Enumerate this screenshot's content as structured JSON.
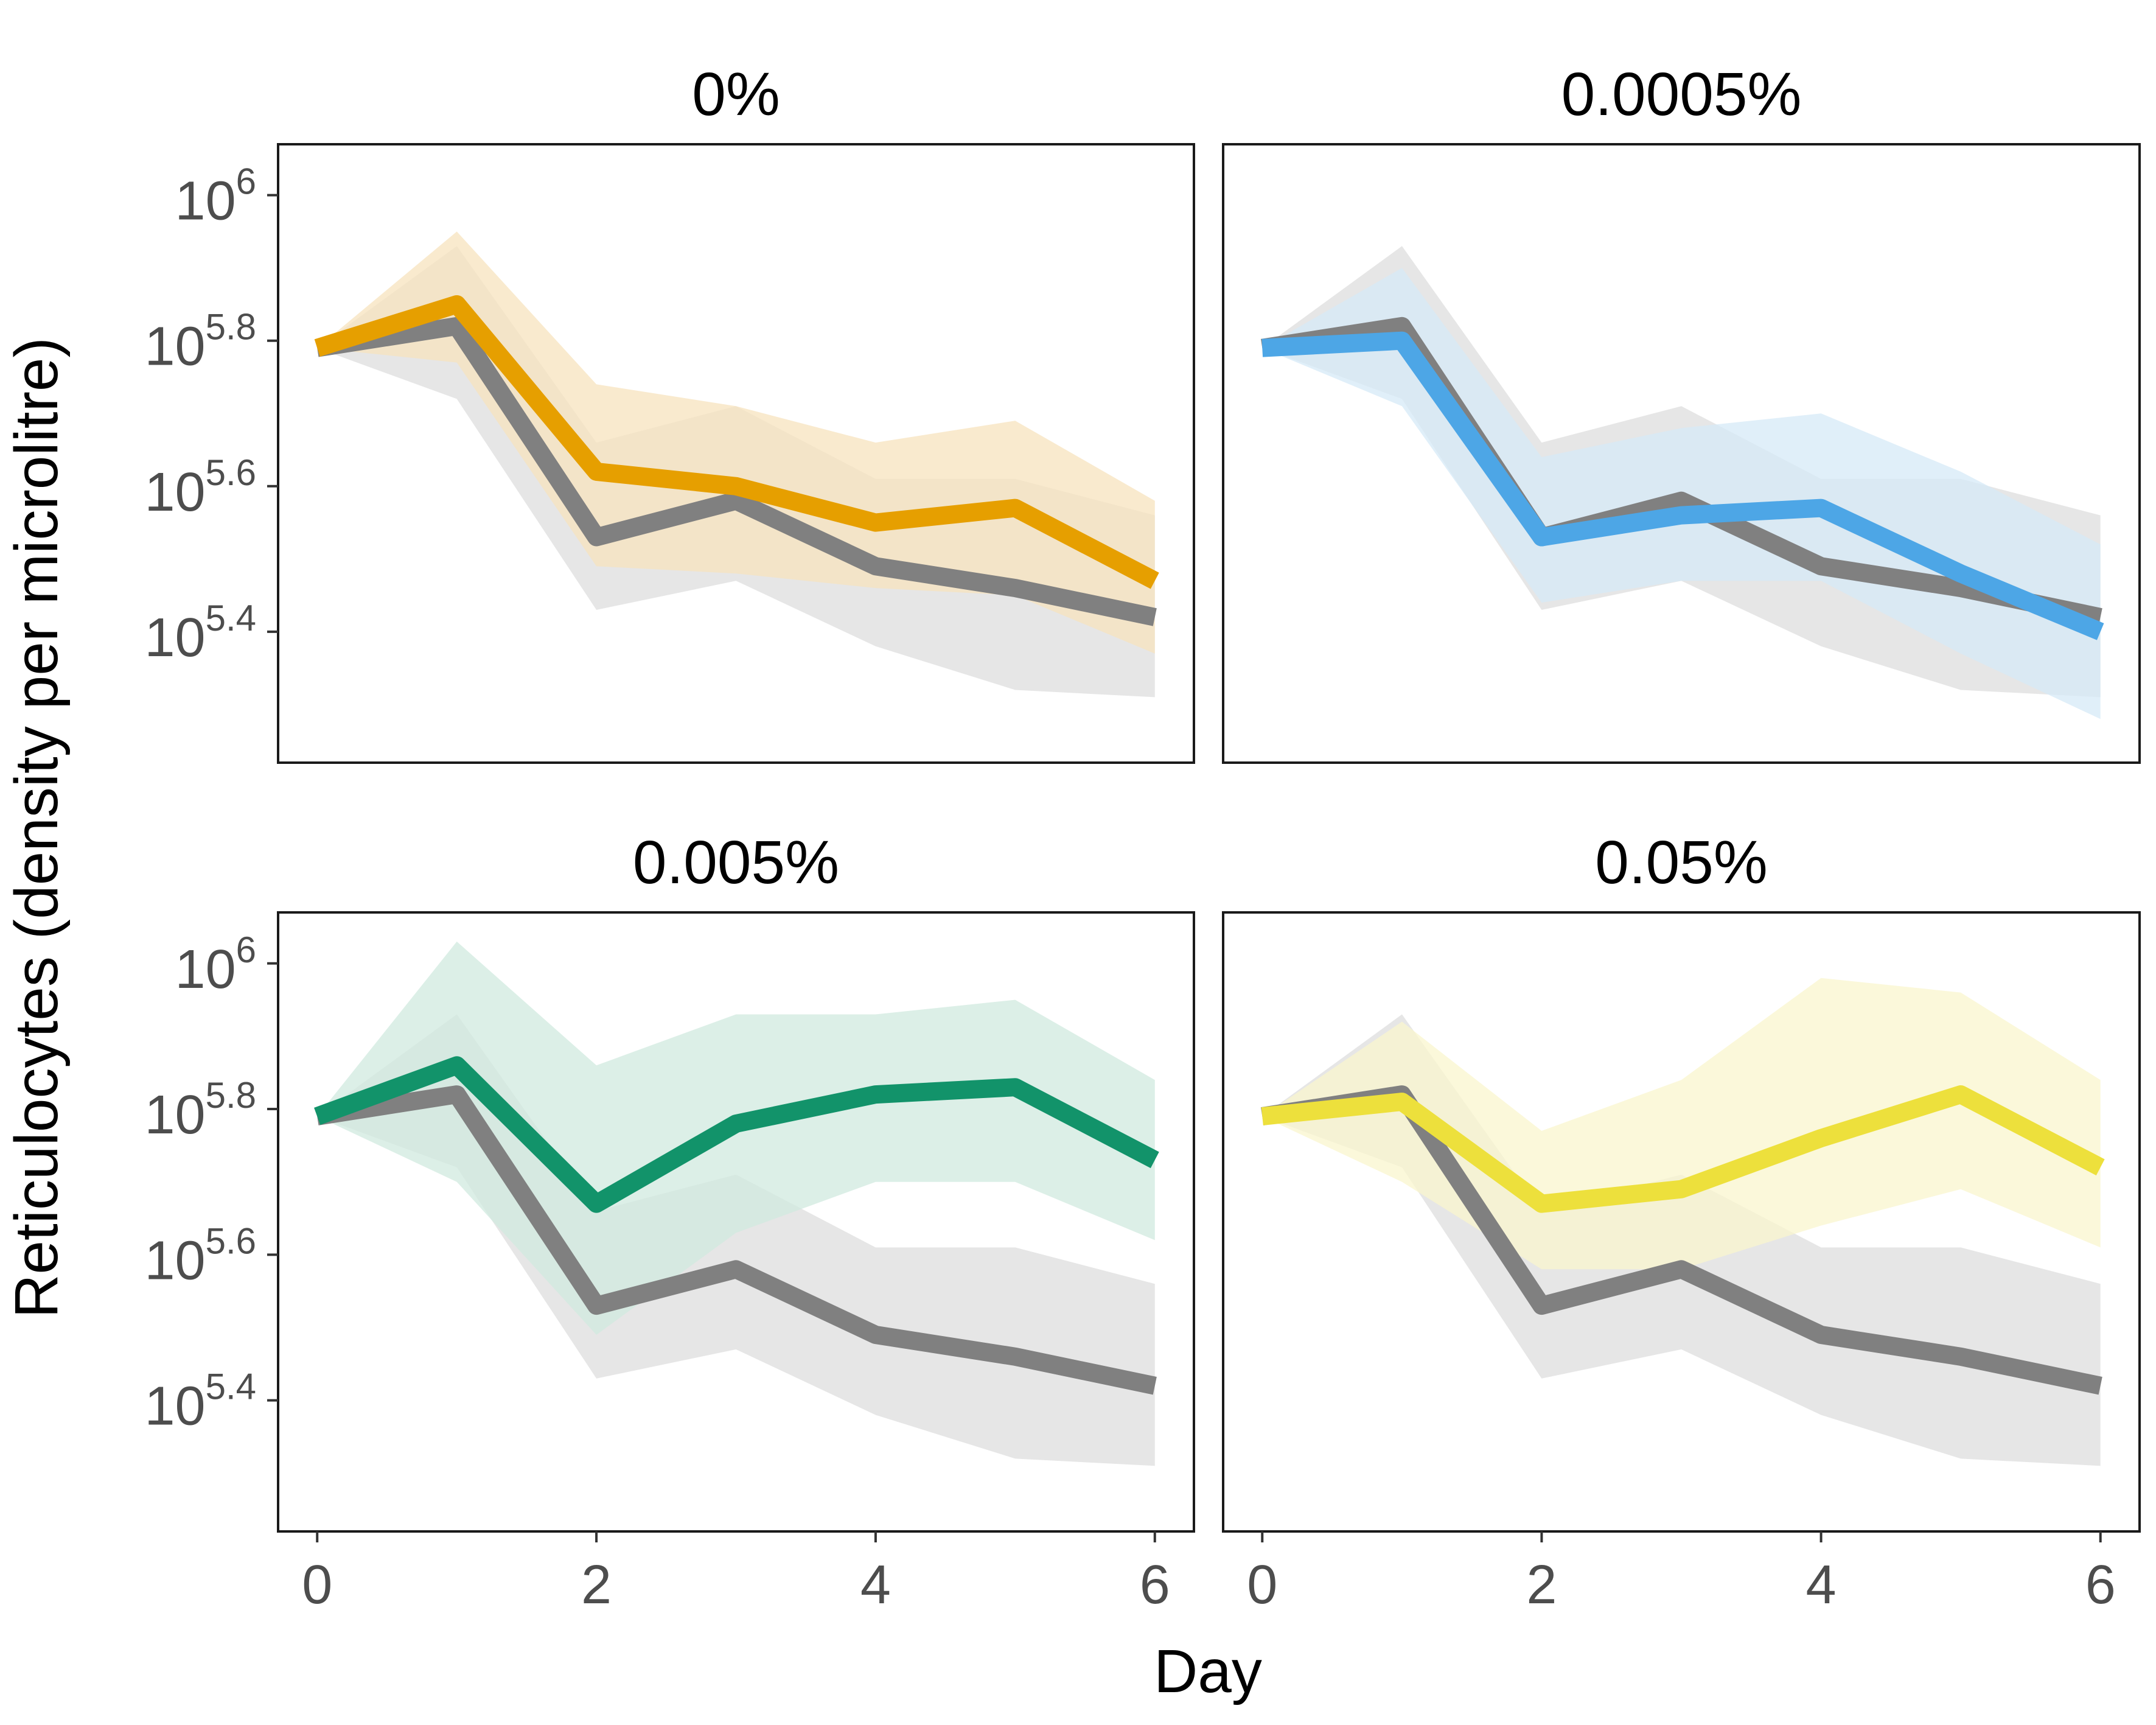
{
  "chart_data": {
    "type": "line",
    "layout": "facet-grid-2x2",
    "ylabel": "Reticulocytes (density per microlitre)",
    "xlabel": "Day",
    "y_scale": "log10",
    "y_tick_labels": [
      {
        "base": "10",
        "exp": "6"
      },
      {
        "base": "10",
        "exp": "5.8"
      },
      {
        "base": "10",
        "exp": "5.6"
      },
      {
        "base": "10",
        "exp": "5.4"
      }
    ],
    "y_ticks_log10": [
      6.0,
      5.8,
      5.6,
      5.4
    ],
    "ylim_log10": [
      5.22,
      6.07
    ],
    "x_ticks": [
      0,
      2,
      4,
      6
    ],
    "x_tick_labels": [
      "0",
      "2",
      "4",
      "6"
    ],
    "xlim": [
      -0.28,
      6.28
    ],
    "grid": false,
    "reference_series": {
      "color": "#808080",
      "band_color": "#e6e6e6",
      "days": [
        0,
        1,
        2,
        3,
        4,
        5,
        6
      ],
      "mean_log10": [
        5.79,
        5.82,
        5.53,
        5.58,
        5.49,
        5.46,
        5.42
      ],
      "lower_log10": [
        5.79,
        5.72,
        5.43,
        5.47,
        5.38,
        5.32,
        5.31
      ],
      "upper_log10": [
        5.79,
        5.93,
        5.66,
        5.71,
        5.61,
        5.61,
        5.56
      ]
    },
    "panels": [
      {
        "title": "0%",
        "color": "#e69f00",
        "band_color": "#f7e3bd",
        "days": [
          0,
          1,
          2,
          3,
          4,
          5,
          6
        ],
        "mean_log10": [
          5.79,
          5.85,
          5.62,
          5.6,
          5.55,
          5.57,
          5.47
        ],
        "lower_log10": [
          5.79,
          5.77,
          5.49,
          5.48,
          5.46,
          5.45,
          5.37
        ],
        "upper_log10": [
          5.79,
          5.95,
          5.74,
          5.71,
          5.66,
          5.69,
          5.58
        ]
      },
      {
        "title": "0.0005%",
        "color": "#4da6e6",
        "band_color": "#d6e9f7",
        "days": [
          0,
          1,
          2,
          3,
          4,
          5,
          6
        ],
        "mean_log10": [
          5.79,
          5.8,
          5.53,
          5.56,
          5.57,
          5.48,
          5.4
        ],
        "lower_log10": [
          5.79,
          5.71,
          5.44,
          5.47,
          5.47,
          5.37,
          5.28
        ],
        "upper_log10": [
          5.79,
          5.9,
          5.64,
          5.68,
          5.7,
          5.62,
          5.52
        ]
      },
      {
        "title": "0.005%",
        "color": "#12936a",
        "band_color": "#d0eadf",
        "days": [
          0,
          1,
          2,
          3,
          4,
          5,
          6
        ],
        "mean_log10": [
          5.79,
          5.86,
          5.67,
          5.78,
          5.82,
          5.83,
          5.73
        ],
        "lower_log10": [
          5.79,
          5.7,
          5.49,
          5.63,
          5.7,
          5.7,
          5.62
        ],
        "upper_log10": [
          5.79,
          6.03,
          5.86,
          5.93,
          5.93,
          5.95,
          5.84
        ]
      },
      {
        "title": "0.05%",
        "color": "#ede03c",
        "band_color": "#faf5cd",
        "days": [
          0,
          1,
          2,
          3,
          4,
          5,
          6
        ],
        "mean_log10": [
          5.79,
          5.81,
          5.67,
          5.69,
          5.76,
          5.82,
          5.72
        ],
        "lower_log10": [
          5.79,
          5.7,
          5.58,
          5.58,
          5.64,
          5.69,
          5.61
        ],
        "upper_log10": [
          5.79,
          5.92,
          5.77,
          5.84,
          5.98,
          5.96,
          5.84
        ]
      }
    ]
  }
}
